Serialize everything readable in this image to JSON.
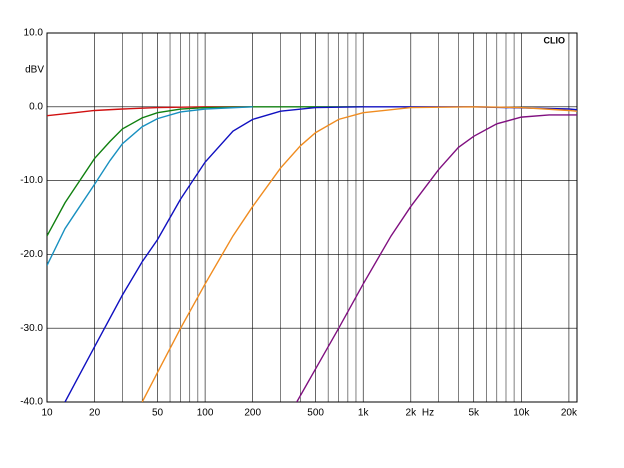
{
  "chart_data": {
    "type": "line",
    "log_x": true,
    "grid": true,
    "logo": "CLIO",
    "y_unit": "dBV",
    "x_unit": "Hz",
    "xlim": [
      10,
      22500
    ],
    "ylim": [
      -40,
      10
    ],
    "yticks": [
      {
        "value": 10,
        "label": "10.0"
      },
      {
        "value": 0,
        "label": "0.0"
      },
      {
        "value": -10,
        "label": "-10.0"
      },
      {
        "value": -20,
        "label": "-20.0"
      },
      {
        "value": -30,
        "label": "-30.0"
      },
      {
        "value": -40,
        "label": "-40.0"
      }
    ],
    "xticks": [
      10,
      20,
      50,
      100,
      200,
      500,
      {
        "value": 1000,
        "label": "1k"
      },
      {
        "value": 2000,
        "label": "2k"
      },
      {
        "value": 5000,
        "label": "5k"
      },
      {
        "value": 10000,
        "label": "10k"
      },
      {
        "value": 20000,
        "label": "20k"
      }
    ],
    "xminor": [
      30,
      40,
      60,
      70,
      80,
      90,
      300,
      400,
      600,
      700,
      800,
      900,
      3000,
      4000,
      6000,
      7000,
      8000,
      9000
    ],
    "series": [
      {
        "color": "#d01010",
        "x": [
          10,
          15,
          20,
          30,
          50,
          100,
          200
        ],
        "values": [
          -1.2,
          -0.8,
          -0.5,
          -0.3,
          -0.1,
          0,
          0
        ]
      },
      {
        "color": "#108010",
        "x": [
          10,
          13,
          15,
          20,
          25,
          30,
          40,
          50,
          70,
          100,
          200,
          1000
        ],
        "values": [
          -17.5,
          -13,
          -11,
          -7,
          -4.7,
          -3,
          -1.5,
          -0.8,
          -0.3,
          -0.1,
          0,
          0
        ]
      },
      {
        "color": "#1890c0",
        "x": [
          10,
          13,
          15,
          20,
          25,
          30,
          40,
          50,
          70,
          100,
          200
        ],
        "values": [
          -21.5,
          -16.5,
          -14.5,
          -10.5,
          -7.3,
          -5,
          -2.7,
          -1.6,
          -0.7,
          -0.3,
          0
        ]
      },
      {
        "color": "#1010c0",
        "x": [
          13,
          15,
          20,
          30,
          40,
          50,
          70,
          100,
          150,
          200,
          300,
          500,
          1000,
          5000,
          20000,
          22500
        ],
        "values": [
          -40,
          -37.5,
          -32.5,
          -25.5,
          -21,
          -18,
          -12.5,
          -7.5,
          -3.3,
          -1.7,
          -0.6,
          -0.1,
          0,
          0,
          -0.3,
          -0.4
        ]
      },
      {
        "color": "#f08c20",
        "x": [
          40,
          50,
          70,
          100,
          150,
          200,
          300,
          400,
          500,
          700,
          1000,
          2000,
          5000,
          10000,
          20000,
          22500
        ],
        "values": [
          -40,
          -36,
          -30,
          -24,
          -17.5,
          -13.5,
          -8.3,
          -5.3,
          -3.5,
          -1.7,
          -0.8,
          -0.1,
          0,
          -0.1,
          -0.5,
          -0.6
        ]
      },
      {
        "color": "#801080",
        "x": [
          380,
          500,
          700,
          1000,
          1500,
          2000,
          3000,
          4000,
          5000,
          7000,
          10000,
          15000,
          20000,
          22500
        ],
        "values": [
          -40,
          -35.5,
          -30,
          -24,
          -17.5,
          -13.5,
          -8.5,
          -5.5,
          -4,
          -2.3,
          -1.4,
          -1.1,
          -1.1,
          -1.1
        ]
      }
    ]
  }
}
